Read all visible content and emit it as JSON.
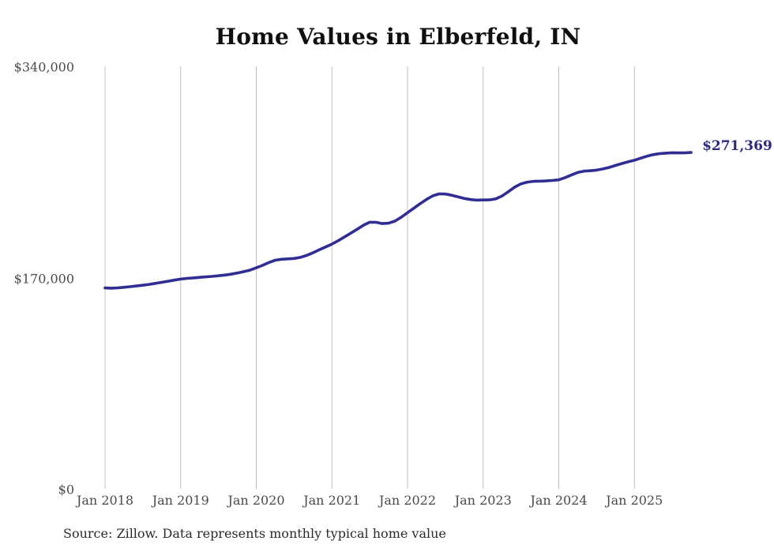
{
  "title": "Home Values in Elberfeld, IN",
  "end_label": "$271,369",
  "source_note": "Source: Zillow. Data represents monthly typical home value",
  "colors": {
    "line": "#302d93",
    "end_label": "#2b2980",
    "grid": "#c2c2c2",
    "axis_text": "#4a4a4a",
    "title_text": "#0f0f0f",
    "source_text": "#2b2b2b",
    "background": "#ffffff"
  },
  "chart_data": {
    "type": "line",
    "title": "Home Values in Elberfeld, IN",
    "xlabel": "",
    "ylabel": "",
    "x_start": "Jan 2018",
    "x_end": "Oct 2025",
    "points_per_year": 12,
    "x_tick_labels": [
      "Jan 2018",
      "Jan 2019",
      "Jan 2020",
      "Jan 2021",
      "Jan 2022",
      "Jan 2023",
      "Jan 2024",
      "Jan 2025"
    ],
    "y_ticks": [
      {
        "label": "$0",
        "value": 0
      },
      {
        "label": "$170,000",
        "value": 170000
      },
      {
        "label": "$340,000",
        "value": 340000
      }
    ],
    "ylim": [
      0,
      340000
    ],
    "grid": "vertical-yearly-only",
    "legend_position": "none",
    "annotation": {
      "text": "$271,369",
      "attach": "line-end"
    },
    "final_value": 271369,
    "series": [
      {
        "name": "Monthly typical home value",
        "unit": "USD",
        "values": [
          162300,
          162100,
          162400,
          162800,
          163300,
          163900,
          164500,
          165200,
          166000,
          166800,
          167700,
          168600,
          169400,
          170000,
          170400,
          170800,
          171200,
          171600,
          172100,
          172700,
          173400,
          174300,
          175400,
          176600,
          178500,
          180500,
          182800,
          184600,
          185400,
          185700,
          186000,
          186900,
          188500,
          190600,
          193000,
          195300,
          197600,
          200300,
          203300,
          206400,
          209500,
          212700,
          215200,
          215100,
          214100,
          214400,
          216100,
          219200,
          222900,
          226500,
          230100,
          233500,
          236400,
          238000,
          237900,
          236900,
          235600,
          234300,
          233400,
          233000,
          233100,
          233200,
          234000,
          236300,
          239800,
          243400,
          246100,
          247500,
          248100,
          248200,
          248400,
          248800,
          249300,
          251100,
          253200,
          255200,
          256300,
          256600,
          257100,
          258100,
          259300,
          260900,
          262400,
          263800,
          265100,
          266700,
          268300,
          269600,
          270400,
          270800,
          271100,
          271000,
          271000,
          271369
        ]
      }
    ]
  }
}
